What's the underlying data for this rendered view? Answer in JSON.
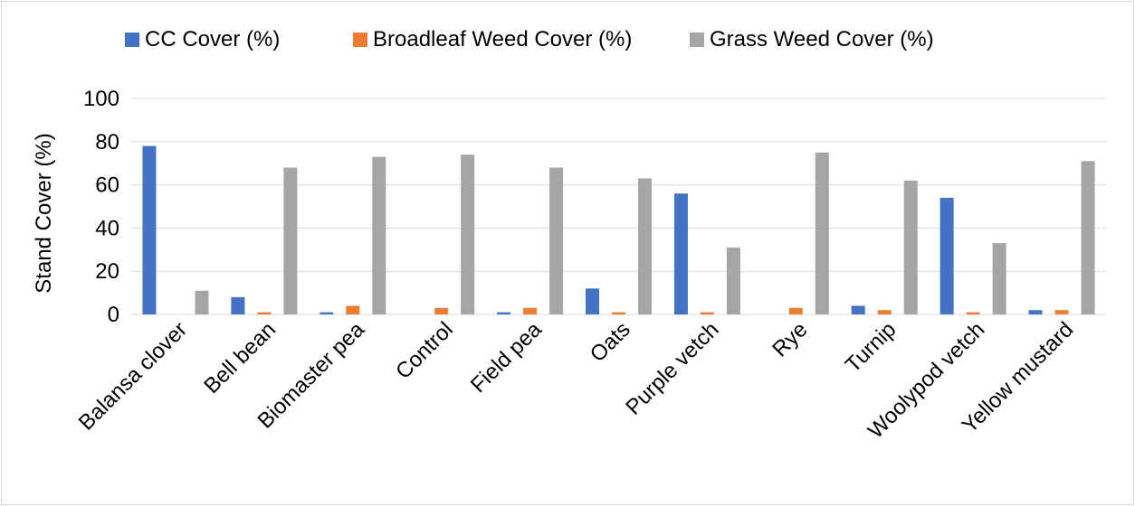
{
  "chart_data": {
    "type": "bar",
    "title": "",
    "xlabel": "",
    "ylabel": "Stand Cover (%)",
    "ylim": [
      0,
      100
    ],
    "yticks": [
      0,
      20,
      40,
      60,
      80,
      100
    ],
    "grid": true,
    "legend_position": "top",
    "categories": [
      "Balansa clover",
      "Bell bean",
      "Biomaster pea",
      "Control",
      "Field pea",
      "Oats",
      "Purple vetch",
      "Rye",
      "Turnip",
      "Woolypod vetch",
      "Yellow mustard"
    ],
    "series": [
      {
        "name": "CC Cover (%)",
        "color": "#4472C4",
        "values": [
          78,
          8,
          1,
          0,
          1,
          12,
          56,
          0,
          4,
          54,
          2
        ]
      },
      {
        "name": "Broadleaf Weed Cover (%)",
        "color": "#ED7D31",
        "values": [
          0,
          1,
          4,
          3,
          3,
          1,
          1,
          3,
          2,
          1,
          2
        ]
      },
      {
        "name": "Grass Weed Cover (%)",
        "color": "#A5A5A5",
        "values": [
          11,
          68,
          73,
          74,
          68,
          63,
          31,
          75,
          62,
          33,
          71
        ]
      }
    ]
  }
}
